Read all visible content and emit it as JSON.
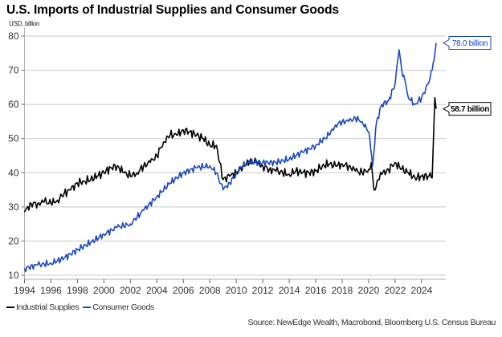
{
  "chart_data": {
    "type": "line",
    "title": "U.S. Imports of Industrial Supplies and Consumer Goods",
    "ylabel": "USD, billion",
    "xlabel": "",
    "ylim": [
      10,
      80
    ],
    "xlim": [
      1994,
      2025.8
    ],
    "yticks": [
      10,
      20,
      30,
      40,
      50,
      60,
      70,
      80
    ],
    "xticks": [
      1994,
      1996,
      1998,
      2000,
      2002,
      2004,
      2006,
      2008,
      2010,
      2012,
      2014,
      2016,
      2018,
      2020,
      2022,
      2024
    ],
    "grid": "horizontal",
    "legend_position": "bottom-left",
    "series": [
      {
        "name": "Industrial Supplies",
        "color": "#000000",
        "x": [
          1994.0,
          1994.5,
          1995.0,
          1995.5,
          1996.0,
          1996.5,
          1997.0,
          1997.5,
          1998.0,
          1998.5,
          1999.0,
          1999.5,
          2000.0,
          2000.5,
          2001.0,
          2001.5,
          2002.0,
          2002.5,
          2003.0,
          2003.5,
          2004.0,
          2004.5,
          2005.0,
          2005.5,
          2006.0,
          2006.5,
          2007.0,
          2007.5,
          2008.0,
          2008.5,
          2009.0,
          2009.5,
          2010.0,
          2010.5,
          2011.0,
          2011.5,
          2012.0,
          2012.5,
          2013.0,
          2013.5,
          2014.0,
          2014.5,
          2015.0,
          2015.5,
          2016.0,
          2016.5,
          2017.0,
          2017.5,
          2018.0,
          2018.5,
          2019.0,
          2019.5,
          2020.0,
          2020.2,
          2020.4,
          2020.8,
          2021.0,
          2021.5,
          2022.0,
          2022.5,
          2023.0,
          2023.5,
          2024.0,
          2024.5,
          2024.8,
          2025.0,
          2025.1
        ],
        "values": [
          28.5,
          31,
          31,
          31.5,
          31,
          32,
          34,
          35,
          37,
          37.5,
          38,
          39,
          40,
          41.5,
          42,
          40,
          39,
          40,
          42,
          43,
          45,
          49,
          51,
          51,
          52.5,
          52,
          51,
          50,
          48,
          48,
          38,
          39,
          40,
          42,
          43,
          43,
          42,
          41,
          40.5,
          40,
          39.5,
          40.5,
          40,
          40,
          40.5,
          42,
          42.5,
          42,
          42.5,
          42,
          40.5,
          40,
          41,
          43,
          35,
          38,
          39.5,
          41,
          43,
          41,
          40,
          38.5,
          39,
          39,
          38.5,
          62,
          58.7
        ]
      },
      {
        "name": "Consumer Goods",
        "color": "#1a47c8",
        "x": [
          1994.0,
          1995.0,
          1996.0,
          1997.0,
          1998.0,
          1999.0,
          2000.0,
          2001.0,
          2002.0,
          2003.0,
          2004.0,
          2005.0,
          2006.0,
          2007.0,
          2008.0,
          2008.5,
          2009.0,
          2009.5,
          2010.0,
          2010.5,
          2011.0,
          2012.0,
          2013.0,
          2014.0,
          2014.5,
          2015.0,
          2015.5,
          2016.0,
          2017.0,
          2017.5,
          2018.0,
          2018.5,
          2019.0,
          2019.5,
          2020.0,
          2020.3,
          2020.6,
          2021.0,
          2021.5,
          2022.0,
          2022.3,
          2022.5,
          2022.8,
          2023.0,
          2023.5,
          2024.0,
          2024.5,
          2024.8,
          2025.1
        ],
        "values": [
          12,
          13,
          13.5,
          15,
          17.5,
          19.5,
          22,
          24,
          25,
          29,
          33,
          37,
          40,
          41.5,
          42,
          40,
          35,
          37,
          40,
          42,
          43,
          43,
          43,
          44,
          45,
          46,
          47,
          48,
          51,
          54,
          55,
          55,
          56,
          55,
          52,
          42,
          55,
          60,
          61,
          66,
          76,
          70,
          66,
          62,
          60,
          62,
          66,
          70,
          78.0
        ]
      }
    ],
    "annotations": [
      {
        "series": "Consumer Goods",
        "value": 78.0,
        "text": "78.0 billion",
        "color": "#1a47c8"
      },
      {
        "series": "Industrial Supplies",
        "value": 58.7,
        "text": "58.7 billion",
        "color": "#000000"
      }
    ]
  },
  "header": {
    "title": "U.S. Imports of Industrial Supplies and Consumer Goods",
    "unit": "USD, billion"
  },
  "legend": [
    {
      "label": "Industrial Supplies",
      "color": "#000000"
    },
    {
      "label": "Consumer Goods",
      "color": "#1a47c8"
    }
  ],
  "source": "Source: NewEdge Wealth, Macrobond, Bloomberg U.S. Census Bureau"
}
